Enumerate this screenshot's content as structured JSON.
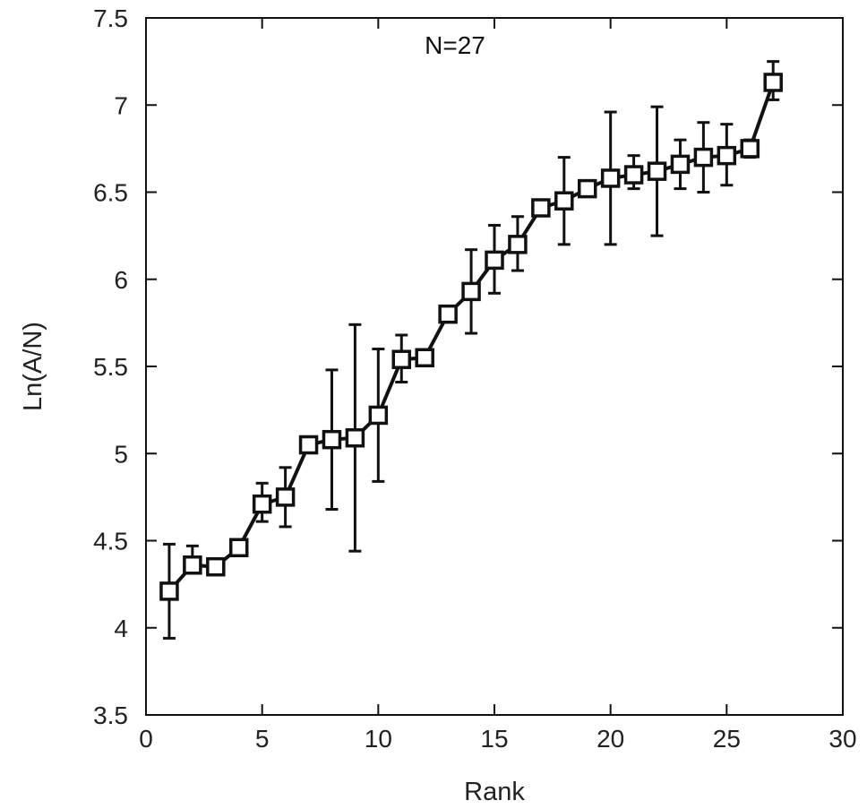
{
  "chart_data": {
    "type": "line",
    "xlabel": "Rank",
    "ylabel": "Ln(A/N)",
    "annotation": "N=27",
    "xlim": [
      0,
      30
    ],
    "ylim": [
      3.5,
      7.5
    ],
    "xticks": [
      0,
      5,
      10,
      15,
      20,
      25,
      30
    ],
    "yticks": [
      3.5,
      4,
      4.5,
      5,
      5.5,
      6,
      6.5,
      7,
      7.5
    ],
    "xtick_labels": [
      "0",
      "5",
      "10",
      "15",
      "20",
      "25",
      "30"
    ],
    "ytick_labels": [
      "3.5",
      "4",
      "4.5",
      "5",
      "5.5",
      "6",
      "6.5",
      "7",
      "7.5"
    ],
    "grid": false,
    "marker": "open-square",
    "line_color": "#111111",
    "series": [
      {
        "x": [
          1,
          2,
          3,
          4,
          5,
          6,
          7,
          8,
          9,
          10,
          11,
          12,
          13,
          14,
          15,
          16,
          17,
          18,
          19,
          20,
          21,
          22,
          23,
          24,
          25,
          26,
          27
        ],
        "y": [
          4.21,
          4.36,
          4.35,
          4.46,
          4.71,
          4.75,
          5.05,
          5.08,
          5.09,
          5.22,
          5.54,
          5.55,
          5.8,
          5.93,
          6.11,
          6.2,
          6.41,
          6.45,
          6.52,
          6.58,
          6.6,
          6.62,
          6.66,
          6.7,
          6.71,
          6.75,
          7.13
        ],
        "err_low": [
          3.94,
          4.33,
          4.35,
          4.43,
          4.61,
          4.58,
          5.05,
          4.68,
          4.44,
          4.84,
          5.41,
          5.55,
          5.8,
          5.69,
          5.92,
          6.05,
          6.4,
          6.2,
          6.52,
          6.2,
          6.52,
          6.25,
          6.52,
          6.5,
          6.54,
          6.7,
          7.03
        ],
        "err_high": [
          4.48,
          4.47,
          4.35,
          4.49,
          4.83,
          4.92,
          5.05,
          5.48,
          5.74,
          5.6,
          5.68,
          5.55,
          5.8,
          6.17,
          6.31,
          6.36,
          6.44,
          6.7,
          6.52,
          6.96,
          6.71,
          6.99,
          6.8,
          6.9,
          6.89,
          6.8,
          7.25
        ]
      }
    ]
  }
}
